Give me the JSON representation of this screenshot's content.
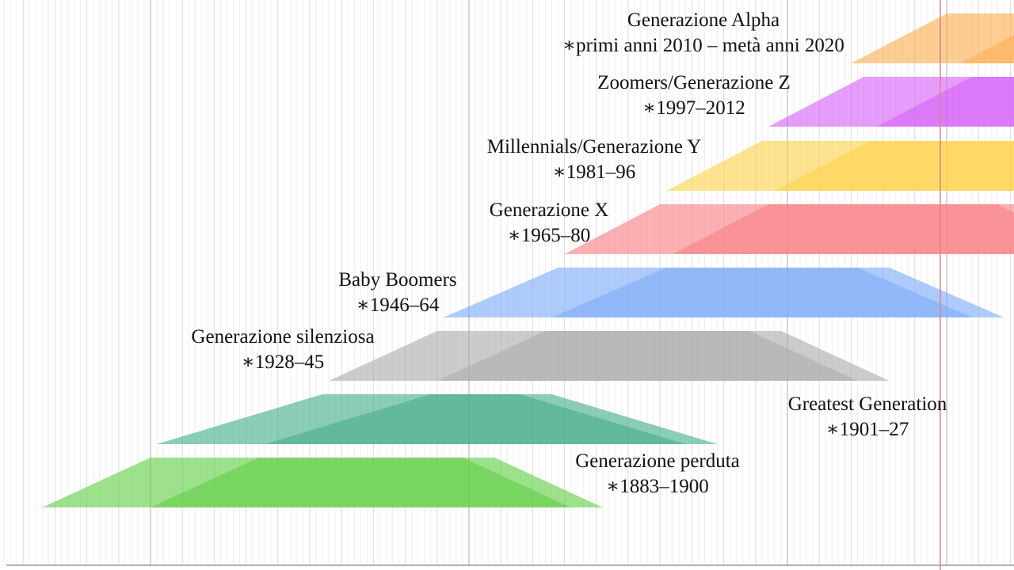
{
  "chart_data": {
    "type": "timeline",
    "title": "",
    "x_range": [
      1876,
      2036
    ],
    "major_grid_years": [
      1900,
      1950,
      2000,
      2025
    ],
    "current_year_marker": 2024,
    "grid": true,
    "generations": [
      {
        "name": "Generazione perduta",
        "range_label": "∗1883–1900",
        "birth_start": 1883,
        "birth_end": 1900,
        "color": "#5ccd3f"
      },
      {
        "name": "Greatest Generation",
        "range_label": "∗1901–27",
        "birth_start": 1901,
        "birth_end": 1927,
        "color": "#3fab85"
      },
      {
        "name": "Generazione silenziosa",
        "range_label": "∗1928–45",
        "birth_start": 1928,
        "birth_end": 1945,
        "color": "#aaaaaa"
      },
      {
        "name": "Baby Boomers",
        "range_label": "∗1946–64",
        "birth_start": 1946,
        "birth_end": 1964,
        "color": "#7aa9f9"
      },
      {
        "name": "Generazione X",
        "range_label": "∗1965–80",
        "birth_start": 1965,
        "birth_end": 1980,
        "color": "#f87c80"
      },
      {
        "name": "Millennials/Generazione Y",
        "range_label": "∗1981–96",
        "birth_start": 1981,
        "birth_end": 1996,
        "color": "#fdd146"
      },
      {
        "name": "Zoomers/Generazione Z",
        "range_label": "∗1997–2012",
        "birth_start": 1997,
        "birth_end": 2012,
        "color": "#d55cf8"
      },
      {
        "name": "Generazione Alpha",
        "range_label": "∗primi anni 2010 – metà anni 2020",
        "birth_start": 2010,
        "birth_end": 2025,
        "color": "#fdab4c"
      }
    ]
  }
}
